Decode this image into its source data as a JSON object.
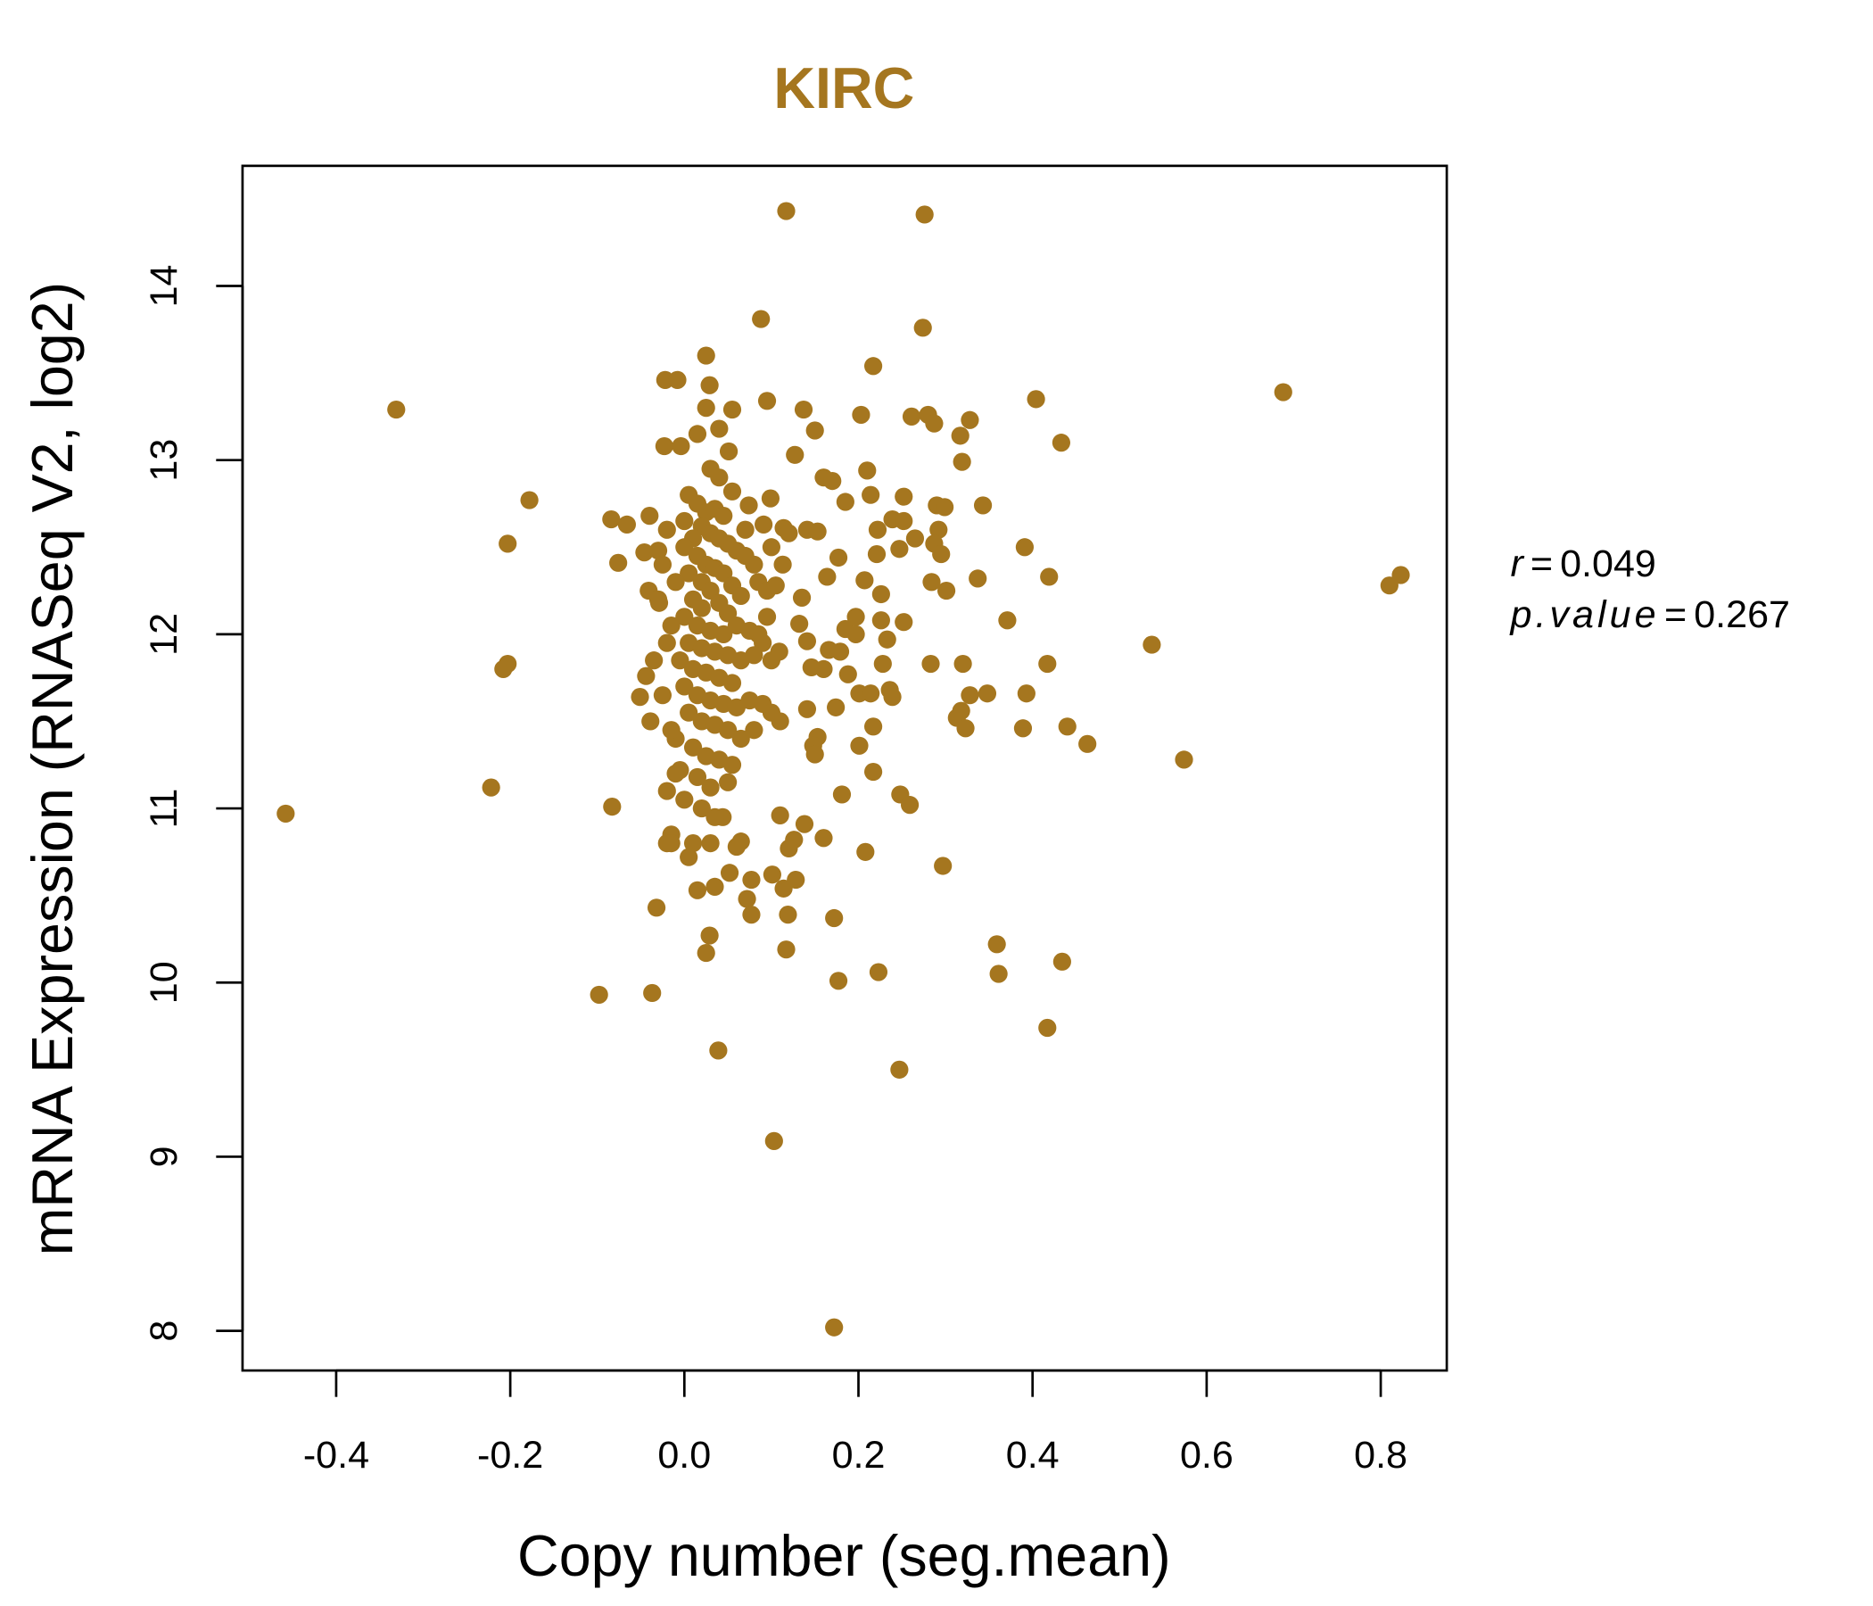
{
  "chart_data": {
    "type": "scatter",
    "title": "KIRC",
    "xlabel": "Copy number (seg.mean)",
    "ylabel": "mRNA Expression (RNASeq V2, log2)",
    "xlim": [
      -0.51,
      0.875
    ],
    "ylim": [
      7.77,
      14.69
    ],
    "xticks": [
      -0.4,
      -0.2,
      0.0,
      0.2,
      0.4,
      0.6,
      0.8
    ],
    "xtick_labels": [
      "-0.4",
      "-0.2",
      "0.0",
      "0.2",
      "0.4",
      "0.6",
      "0.8"
    ],
    "yticks": [
      8,
      9,
      10,
      11,
      12,
      13,
      14
    ],
    "ytick_labels": [
      "8",
      "9",
      "10",
      "11",
      "12",
      "13",
      "14"
    ],
    "grid": false,
    "color": "#A5761F",
    "stats": {
      "r_label": "r",
      "r_value": "0.049",
      "p_label": "p.value",
      "p_value": "0.267",
      "eq": "="
    },
    "points": [
      [
        0.117,
        14.43
      ],
      [
        0.276,
        14.41
      ],
      [
        0.088,
        13.81
      ],
      [
        0.274,
        13.76
      ],
      [
        0.025,
        13.6
      ],
      [
        0.217,
        13.54
      ],
      [
        -0.331,
        13.29
      ],
      [
        0.688,
        13.39
      ],
      [
        0.404,
        13.35
      ],
      [
        -0.022,
        13.46
      ],
      [
        -0.008,
        13.46
      ],
      [
        0.029,
        13.43
      ],
      [
        0.095,
        13.34
      ],
      [
        0.137,
        13.29
      ],
      [
        0.203,
        13.26
      ],
      [
        0.261,
        13.25
      ],
      [
        0.28,
        13.26
      ],
      [
        0.328,
        13.23
      ],
      [
        0.287,
        13.21
      ],
      [
        0.055,
        13.29
      ],
      [
        0.15,
        13.17
      ],
      [
        0.317,
        13.14
      ],
      [
        0.433,
        13.1
      ],
      [
        -0.023,
        13.08
      ],
      [
        -0.004,
        13.08
      ],
      [
        0.051,
        13.05
      ],
      [
        0.127,
        13.03
      ],
      [
        0.319,
        12.99
      ],
      [
        0.21,
        12.94
      ],
      [
        -0.178,
        12.77
      ],
      [
        0.16,
        12.9
      ],
      [
        0.17,
        12.88
      ],
      [
        0.214,
        12.8
      ],
      [
        0.252,
        12.79
      ],
      [
        0.099,
        12.78
      ],
      [
        0.185,
        12.76
      ],
      [
        0.343,
        12.74
      ],
      [
        0.29,
        12.74
      ],
      [
        0.299,
        12.73
      ],
      [
        0.074,
        12.74
      ],
      [
        -0.084,
        12.66
      ],
      [
        -0.066,
        12.63
      ],
      [
        -0.04,
        12.68
      ],
      [
        0.091,
        12.63
      ],
      [
        0.114,
        12.61
      ],
      [
        0.141,
        12.6
      ],
      [
        0.153,
        12.59
      ],
      [
        0.222,
        12.6
      ],
      [
        0.239,
        12.66
      ],
      [
        0.252,
        12.65
      ],
      [
        0.292,
        12.6
      ],
      [
        0.265,
        12.55
      ],
      [
        0.287,
        12.52
      ],
      [
        -0.203,
        12.52
      ],
      [
        0.391,
        12.5
      ],
      [
        0.247,
        12.49
      ],
      [
        0.295,
        12.46
      ],
      [
        0.221,
        12.46
      ],
      [
        0.177,
        12.44
      ],
      [
        -0.076,
        12.41
      ],
      [
        -0.046,
        12.47
      ],
      [
        -0.03,
        12.48
      ],
      [
        0.113,
        12.4
      ],
      [
        0.419,
        12.33
      ],
      [
        0.337,
        12.32
      ],
      [
        0.284,
        12.3
      ],
      [
        0.207,
        12.31
      ],
      [
        0.164,
        12.33
      ],
      [
        0.301,
        12.25
      ],
      [
        0.226,
        12.23
      ],
      [
        0.135,
        12.21
      ],
      [
        0.823,
        12.34
      ],
      [
        0.81,
        12.28
      ],
      [
        -0.041,
        12.25
      ],
      [
        -0.029,
        12.18
      ],
      [
        0.197,
        12.1
      ],
      [
        0.226,
        12.08
      ],
      [
        0.252,
        12.07
      ],
      [
        0.371,
        12.08
      ],
      [
        0.132,
        12.06
      ],
      [
        0.185,
        12.03
      ],
      [
        0.197,
        12.0
      ],
      [
        0.141,
        11.96
      ],
      [
        0.233,
        11.97
      ],
      [
        0.537,
        11.94
      ],
      [
        0.109,
        11.9
      ],
      [
        0.166,
        11.91
      ],
      [
        0.179,
        11.9
      ],
      [
        0.228,
        11.83
      ],
      [
        0.283,
        11.83
      ],
      [
        0.32,
        11.83
      ],
      [
        0.417,
        11.83
      ],
      [
        -0.203,
        11.83
      ],
      [
        -0.208,
        11.8
      ],
      [
        0.146,
        11.81
      ],
      [
        0.16,
        11.8
      ],
      [
        0.188,
        11.77
      ],
      [
        -0.044,
        11.76
      ],
      [
        0.201,
        11.66
      ],
      [
        0.214,
        11.66
      ],
      [
        0.236,
        11.68
      ],
      [
        0.239,
        11.64
      ],
      [
        0.328,
        11.65
      ],
      [
        0.348,
        11.66
      ],
      [
        0.393,
        11.66
      ],
      [
        -0.051,
        11.64
      ],
      [
        0.141,
        11.57
      ],
      [
        0.174,
        11.58
      ],
      [
        0.318,
        11.56
      ],
      [
        0.313,
        11.52
      ],
      [
        0.323,
        11.46
      ],
      [
        0.389,
        11.46
      ],
      [
        0.44,
        11.47
      ],
      [
        0.217,
        11.47
      ],
      [
        -0.039,
        11.5
      ],
      [
        0.153,
        11.41
      ],
      [
        0.148,
        11.36
      ],
      [
        0.15,
        11.31
      ],
      [
        0.201,
        11.36
      ],
      [
        0.463,
        11.37
      ],
      [
        0.574,
        11.28
      ],
      [
        0.217,
        11.21
      ],
      [
        -0.222,
        11.12
      ],
      [
        0.181,
        11.08
      ],
      [
        0.248,
        11.08
      ],
      [
        0.259,
        11.02
      ],
      [
        -0.083,
        11.01
      ],
      [
        -0.458,
        10.97
      ],
      [
        0.11,
        10.96
      ],
      [
        0.044,
        10.95
      ],
      [
        0.138,
        10.91
      ],
      [
        0.16,
        10.83
      ],
      [
        0.126,
        10.82
      ],
      [
        0.12,
        10.77
      ],
      [
        0.065,
        10.81
      ],
      [
        0.208,
        10.75
      ],
      [
        0.297,
        10.67
      ],
      [
        0.101,
        10.62
      ],
      [
        0.128,
        10.59
      ],
      [
        0.114,
        10.54
      ],
      [
        0.052,
        10.63
      ],
      [
        0.077,
        10.59
      ],
      [
        0.072,
        10.48
      ],
      [
        0.077,
        10.39
      ],
      [
        0.119,
        10.39
      ],
      [
        0.172,
        10.37
      ],
      [
        -0.032,
        10.43
      ],
      [
        0.029,
        10.27
      ],
      [
        0.025,
        10.17
      ],
      [
        0.117,
        10.19
      ],
      [
        0.359,
        10.22
      ],
      [
        0.434,
        10.12
      ],
      [
        0.361,
        10.05
      ],
      [
        0.223,
        10.06
      ],
      [
        0.177,
        10.01
      ],
      [
        -0.098,
        9.93
      ],
      [
        -0.037,
        9.94
      ],
      [
        0.417,
        9.74
      ],
      [
        0.039,
        9.61
      ],
      [
        0.247,
        9.5
      ],
      [
        0.103,
        9.09
      ],
      [
        0.172,
        8.02
      ],
      [
        0.005,
        12.8
      ],
      [
        0.015,
        12.75
      ],
      [
        0.025,
        12.7
      ],
      [
        0.035,
        12.72
      ],
      [
        0.045,
        12.68
      ],
      [
        0.02,
        12.62
      ],
      [
        0.03,
        12.58
      ],
      [
        0.04,
        12.55
      ],
      [
        0.05,
        12.52
      ],
      [
        0.01,
        12.55
      ],
      [
        0.0,
        12.5
      ],
      [
        0.06,
        12.48
      ],
      [
        0.07,
        12.45
      ],
      [
        0.08,
        12.4
      ],
      [
        0.015,
        12.45
      ],
      [
        0.025,
        12.4
      ],
      [
        0.035,
        12.38
      ],
      [
        0.045,
        12.35
      ],
      [
        0.005,
        12.35
      ],
      [
        -0.01,
        12.3
      ],
      [
        0.02,
        12.3
      ],
      [
        0.03,
        12.25
      ],
      [
        0.055,
        12.28
      ],
      [
        0.065,
        12.22
      ],
      [
        0.085,
        12.3
      ],
      [
        0.095,
        12.25
      ],
      [
        0.01,
        12.2
      ],
      [
        0.02,
        12.15
      ],
      [
        0.04,
        12.18
      ],
      [
        0.05,
        12.12
      ],
      [
        0.0,
        12.1
      ],
      [
        -0.015,
        12.05
      ],
      [
        0.015,
        12.05
      ],
      [
        0.03,
        12.02
      ],
      [
        0.045,
        12.0
      ],
      [
        0.06,
        12.05
      ],
      [
        0.075,
        12.02
      ],
      [
        0.09,
        11.95
      ],
      [
        0.005,
        11.95
      ],
      [
        0.02,
        11.92
      ],
      [
        0.035,
        11.9
      ],
      [
        0.05,
        11.88
      ],
      [
        0.065,
        11.85
      ],
      [
        0.08,
        11.88
      ],
      [
        0.1,
        11.85
      ],
      [
        -0.005,
        11.85
      ],
      [
        0.01,
        11.8
      ],
      [
        0.025,
        11.78
      ],
      [
        0.04,
        11.75
      ],
      [
        0.055,
        11.72
      ],
      [
        0.0,
        11.7
      ],
      [
        0.015,
        11.65
      ],
      [
        0.03,
        11.62
      ],
      [
        0.045,
        11.6
      ],
      [
        0.06,
        11.58
      ],
      [
        0.075,
        11.62
      ],
      [
        0.09,
        11.6
      ],
      [
        0.005,
        11.55
      ],
      [
        0.02,
        11.5
      ],
      [
        0.035,
        11.48
      ],
      [
        0.05,
        11.45
      ],
      [
        0.065,
        11.4
      ],
      [
        0.08,
        11.45
      ],
      [
        -0.01,
        11.4
      ],
      [
        0.01,
        11.35
      ],
      [
        0.025,
        11.3
      ],
      [
        0.04,
        11.28
      ],
      [
        0.055,
        11.25
      ],
      [
        -0.005,
        11.22
      ],
      [
        0.015,
        11.18
      ],
      [
        0.03,
        11.12
      ],
      [
        0.05,
        11.15
      ],
      [
        0.0,
        11.05
      ],
      [
        0.02,
        11.0
      ],
      [
        0.035,
        10.95
      ],
      [
        -0.015,
        10.85
      ],
      [
        0.01,
        10.8
      ],
      [
        0.03,
        10.8
      ],
      [
        0.06,
        10.78
      ],
      [
        0.005,
        10.72
      ],
      [
        0.015,
        10.53
      ],
      [
        0.035,
        10.55
      ],
      [
        -0.02,
        10.8
      ],
      [
        0.1,
        11.55
      ],
      [
        0.11,
        11.5
      ],
      [
        0.12,
        12.58
      ],
      [
        0.1,
        12.5
      ],
      [
        0.095,
        12.1
      ],
      [
        0.085,
        12.0
      ],
      [
        0.105,
        12.28
      ],
      [
        0.07,
        12.6
      ],
      [
        0.055,
        12.82
      ],
      [
        0.04,
        12.9
      ],
      [
        0.03,
        12.95
      ],
      [
        0.015,
        13.15
      ],
      [
        0.04,
        13.18
      ],
      [
        0.025,
        13.3
      ],
      [
        0.0,
        12.65
      ],
      [
        -0.02,
        12.6
      ],
      [
        -0.025,
        12.4
      ],
      [
        -0.03,
        12.2
      ],
      [
        -0.02,
        11.95
      ],
      [
        -0.035,
        11.85
      ],
      [
        -0.025,
        11.65
      ],
      [
        -0.015,
        11.45
      ],
      [
        -0.01,
        11.2
      ],
      [
        -0.02,
        11.1
      ],
      [
        -0.015,
        10.8
      ]
    ]
  }
}
